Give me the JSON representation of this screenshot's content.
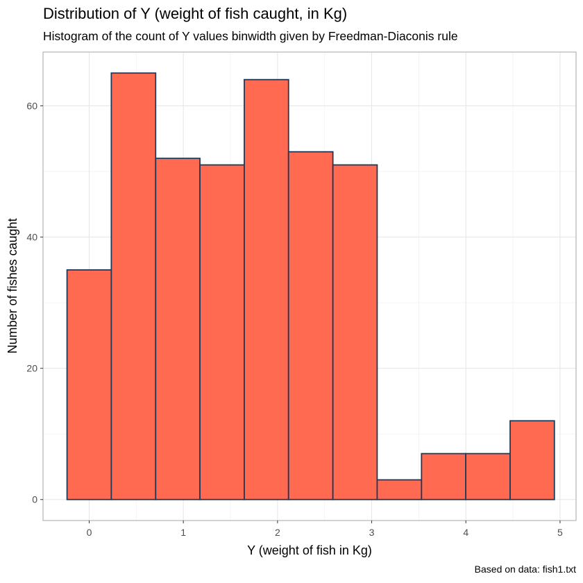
{
  "chart_data": {
    "type": "bar",
    "title": "Distribution of Y (weight of fish caught, in Kg)",
    "subtitle": "Histogram of the count of Y values binwidth given by Freedman-Diaconis rule",
    "xlabel": "Y (weight of fish in Kg)",
    "ylabel": "Number of fishes caught",
    "caption": "Based on data: fish1.txt",
    "xlim": [
      -0.49,
      5.17
    ],
    "ylim": [
      -3.2,
      68.2
    ],
    "x_ticks": [
      0,
      1,
      2,
      3,
      4,
      5
    ],
    "y_ticks": [
      0,
      20,
      40,
      60
    ],
    "bin_width": 0.4705,
    "bin_edges": [
      -0.235,
      0.235,
      0.706,
      1.176,
      1.647,
      2.117,
      2.588,
      3.058,
      3.529,
      3.999,
      4.47,
      4.94
    ],
    "values": [
      35,
      65,
      52,
      51,
      64,
      53,
      51,
      3,
      7,
      7,
      12
    ],
    "grid": true,
    "legend": "none",
    "colors": {
      "fill": "#ff6a50",
      "outline": "#1d3a5c"
    }
  }
}
